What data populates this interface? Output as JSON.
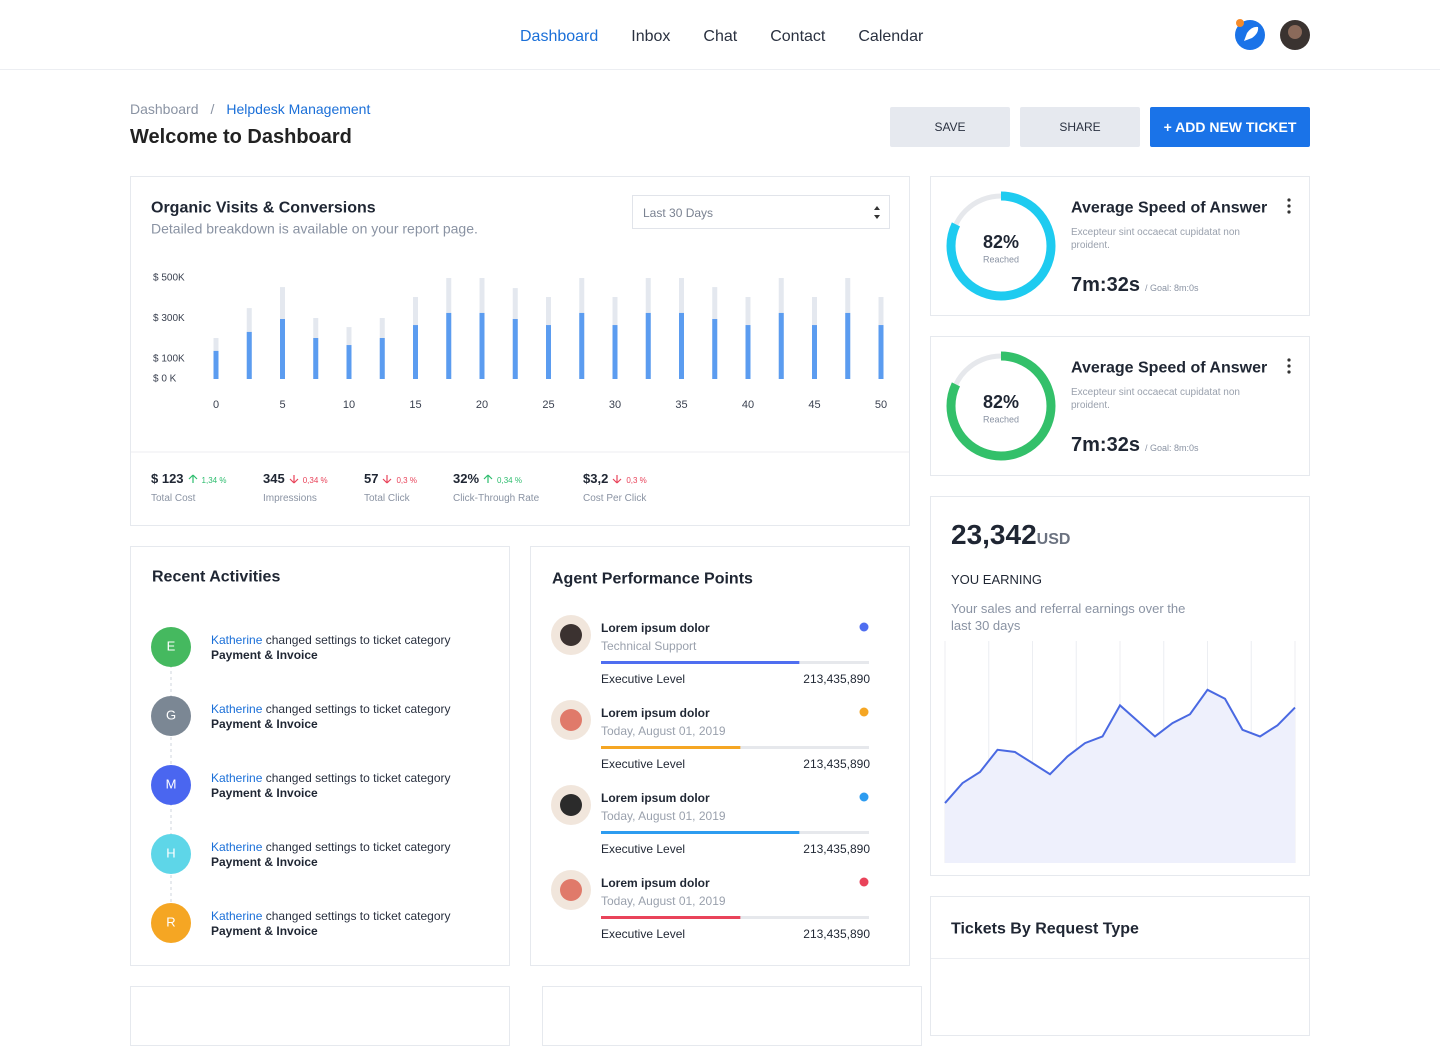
{
  "nav": {
    "items": [
      "Dashboard",
      "Inbox",
      "Chat",
      "Contact",
      "Calendar"
    ],
    "active": 0
  },
  "breadcrumb": [
    "Dashboard",
    "Helpdesk Management"
  ],
  "breadcrumb_separator": "/",
  "header": {
    "title": "Welcome to Dashboard"
  },
  "actions": [
    "SAVE",
    "SHARE",
    "+ ADD NEW TICKET"
  ],
  "chart_data": [
    {
      "type": "bar",
      "title": "Organic Visits & Conversions",
      "subtitle": "Detailed breakdown is available on your report page.",
      "filter": "Last 30 Days",
      "x": [
        0,
        2.5,
        5,
        7.5,
        10,
        12.5,
        15,
        17.5,
        20,
        22.5,
        25,
        27.5,
        30,
        32.5,
        35,
        37.5,
        40,
        42.5,
        45,
        47.5,
        50
      ],
      "xlim": [
        0,
        50
      ],
      "xticks": [
        0,
        5,
        10,
        15,
        20,
        25,
        30,
        35,
        40,
        45,
        50
      ],
      "ylim": [
        0,
        500
      ],
      "yticks": [
        {
          "value": 500,
          "label": "$ 500K"
        },
        {
          "value": 300,
          "label": "$ 300K"
        },
        {
          "value": 100,
          "label": "$ 100K"
        },
        {
          "value": 0,
          "label": "$ 0 K"
        }
      ],
      "series": [
        {
          "color": "#e4e8ef",
          "values": [
            203,
            351,
            455,
            302,
            257,
            302,
            406,
            500,
            500,
            450,
            406,
            500,
            406,
            500,
            500,
            455,
            406,
            500,
            406,
            500,
            406
          ]
        },
        {
          "color": "#5b9cf0",
          "values": [
            139,
            233,
            297,
            203,
            168,
            203,
            267,
            327,
            327,
            297,
            267,
            327,
            267,
            327,
            327,
            297,
            267,
            327,
            267,
            327,
            267
          ]
        }
      ]
    },
    {
      "type": "area",
      "color": "#4a69e2",
      "fill": "#eef0fc",
      "ylim": [
        0,
        100
      ],
      "values": [
        27,
        36,
        41,
        51,
        50,
        45,
        40,
        48,
        54,
        57,
        71,
        64,
        57,
        63,
        67,
        78,
        74,
        60,
        57,
        62,
        70
      ]
    }
  ],
  "kpis": [
    {
      "value": "$ 123",
      "change": "1,34 %",
      "trend": "up",
      "label": "Total Cost"
    },
    {
      "value": "345",
      "change": "0,34 %",
      "trend": "down",
      "label": "Impressions"
    },
    {
      "value": "57",
      "change": "0,3 %",
      "trend": "down",
      "label": "Total Click"
    },
    {
      "value": "32%",
      "change": "0,34 %",
      "trend": "up",
      "label": "Click-Through Rate"
    },
    {
      "value": "$3,2",
      "change": "0,3 %",
      "trend": "down",
      "label": "Cost Per Click"
    }
  ],
  "speed_cards": [
    {
      "title": "Average Speed of Answer",
      "progress": {
        "value": 82,
        "label": "82%"
      },
      "caption": "Reached",
      "description": "Excepteur sint occaecat cupidatat non proident.",
      "time": "7m:32s",
      "goal": "/ Goal: 8m:0s",
      "color": "#1ecbf0"
    },
    {
      "title": "Average Speed of Answer",
      "progress": {
        "value": 82,
        "label": "82%"
      },
      "caption": "Reached",
      "description": "Excepteur sint occaecat cupidatat non proident.",
      "time": "7m:32s",
      "goal": "/ Goal: 8m:0s",
      "color": "#33c06a"
    }
  ],
  "earnings": {
    "amount": "23,342",
    "currency": "USD",
    "label": "YOU EARNING",
    "description": "Your sales and referral earnings over the last 30 days"
  },
  "activities": {
    "title": "Recent Activities",
    "items": [
      {
        "initial": "E",
        "color": "#45b95f",
        "user": "Katherine",
        "action": "changed settings to ticket category",
        "category": "Payment & Invoice"
      },
      {
        "initial": "G",
        "color": "#7b8794",
        "user": "Katherine",
        "action": "changed settings to ticket category",
        "category": "Payment & Invoice"
      },
      {
        "initial": "M",
        "color": "#4a66f0",
        "user": "Katherine",
        "action": "changed settings to ticket category",
        "category": "Payment & Invoice"
      },
      {
        "initial": "H",
        "color": "#5ed6e8",
        "user": "Katherine",
        "action": "changed settings to ticket category",
        "category": "Payment & Invoice"
      },
      {
        "initial": "R",
        "color": "#f5a623",
        "user": "Katherine",
        "action": "changed settings to ticket category",
        "category": "Payment & Invoice"
      }
    ]
  },
  "agents": {
    "title": "Agent Performance Points",
    "items": [
      {
        "name": "Lorem ipsum dolor",
        "role": "Technical Support",
        "color": "#4f6ef0",
        "progress": 74,
        "level": "Executive Level",
        "points": "213,435,890"
      },
      {
        "name": "Lorem ipsum dolor",
        "role": "Today, August 01, 2019",
        "color": "#f5a623",
        "progress": 52,
        "level": "Executive Level",
        "points": "213,435,890"
      },
      {
        "name": "Lorem ipsum dolor",
        "role": "Today, August 01, 2019",
        "color": "#2d9cf0",
        "progress": 74,
        "level": "Executive Level",
        "points": "213,435,890"
      },
      {
        "name": "Lorem ipsum dolor",
        "role": "Today, August 01, 2019",
        "color": "#e9435a",
        "progress": 52,
        "level": "Executive Level",
        "points": "213,435,890"
      }
    ]
  },
  "tickets": {
    "title": "Tickets By Request Type"
  }
}
